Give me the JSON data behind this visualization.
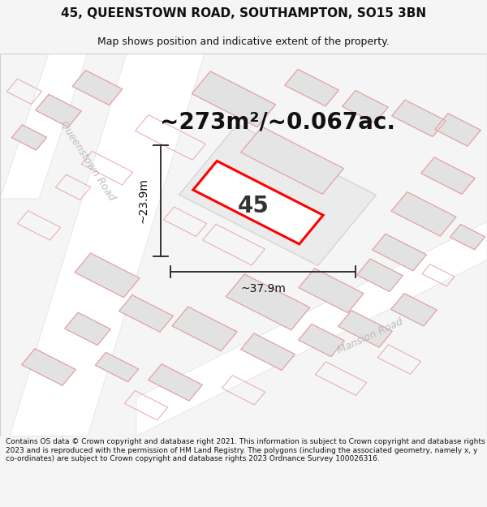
{
  "title": "45, QUEENSTOWN ROAD, SOUTHAMPTON, SO15 3BN",
  "subtitle": "Map shows position and indicative extent of the property.",
  "area_text": "~273m²/~0.067ac.",
  "label_45": "45",
  "dim_width": "~37.9m",
  "dim_height": "~23.9m",
  "road_queenstown": "Queenstown Road",
  "road_mansion": "Mansion Road",
  "footer": "Contains OS data © Crown copyright and database right 2021. This information is subject to Crown copyright and database rights 2023 and is reproduced with the permission of HM Land Registry. The polygons (including the associated geometry, namely x, y co-ordinates) are subject to Crown copyright and database rights 2023 Ordnance Survey 100026316.",
  "bg_color": "#f5f5f5",
  "map_bg": "#f8f8f8",
  "building_fill": "#e2e2e2",
  "building_edge": "#d0d0d0",
  "pink_edge": "#e8a0a0",
  "highlight_fill": "#ffffff",
  "highlight_edge": "#ff0000",
  "road_fill": "#ffffff",
  "dim_line_color": "#222222",
  "title_fontsize": 11,
  "subtitle_fontsize": 9,
  "area_fontsize": 20,
  "label_fontsize": 20,
  "dim_fontsize": 10,
  "road_fontsize": 9,
  "footer_fontsize": 6.5
}
